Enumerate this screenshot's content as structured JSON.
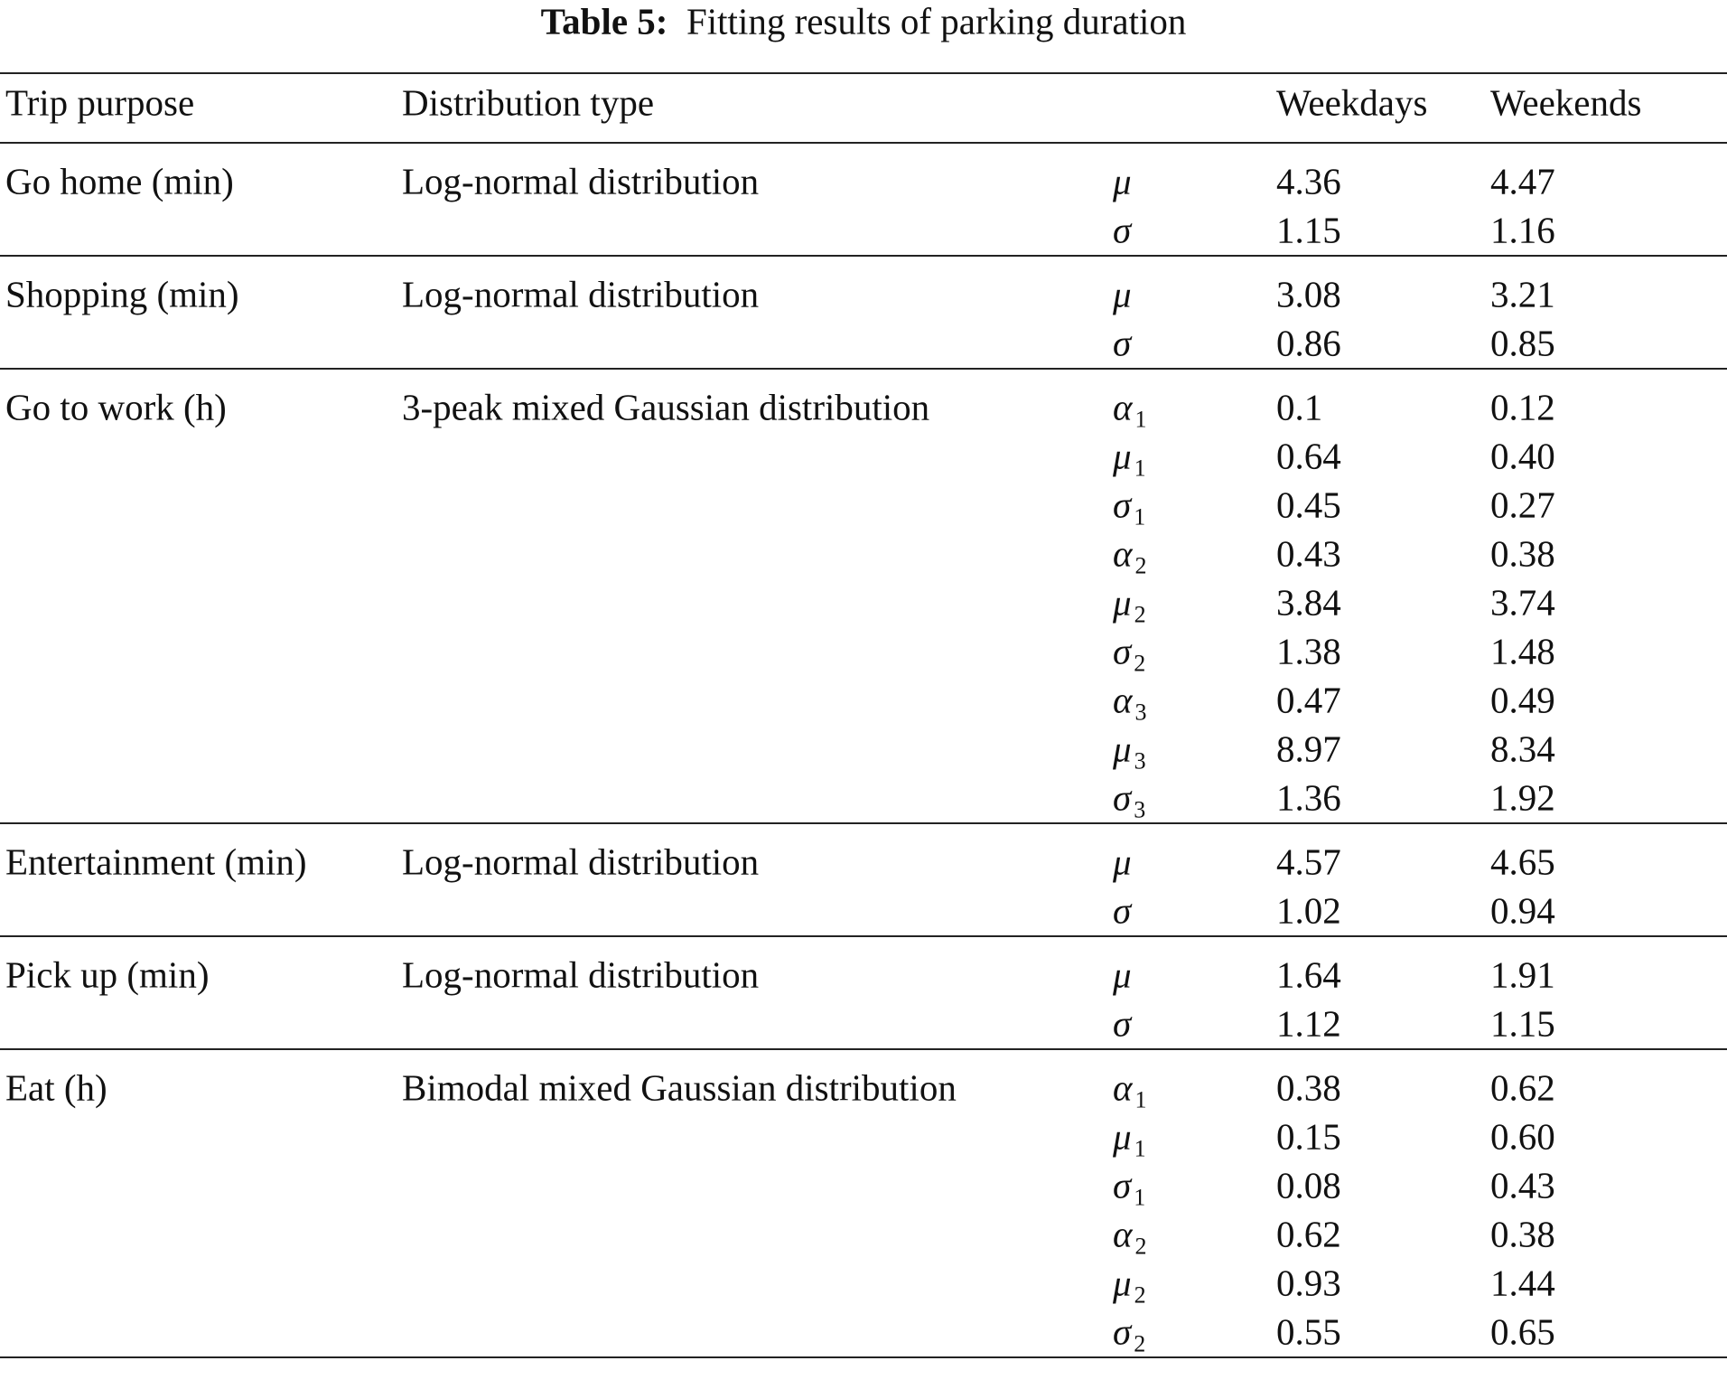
{
  "caption": {
    "label": "Table 5:",
    "text": "Fitting results of parking duration"
  },
  "table": {
    "header": [
      "Trip purpose",
      "Distribution type",
      "Weekdays",
      "Weekends"
    ],
    "groups": [
      {
        "purpose": "Go home (min)",
        "distribution": "Log-normal distribution",
        "params": [
          {
            "symbol": "μ",
            "weekdays": "4.36",
            "weekends": "4.47"
          },
          {
            "symbol": "σ",
            "weekdays": "1.15",
            "weekends": "1.16"
          }
        ]
      },
      {
        "purpose": "Shopping (min)",
        "distribution": "Log-normal distribution",
        "params": [
          {
            "symbol": "μ",
            "weekdays": "3.08",
            "weekends": "3.21"
          },
          {
            "symbol": "σ",
            "weekdays": "0.86",
            "weekends": "0.85"
          }
        ]
      },
      {
        "purpose": "Go to work (h)",
        "distribution": "3-peak mixed Gaussian distribution",
        "params": [
          {
            "symbol": "α",
            "sub": "1",
            "weekdays": "0.1",
            "weekends": "0.12"
          },
          {
            "symbol": "μ",
            "sub": "1",
            "weekdays": "0.64",
            "weekends": "0.40"
          },
          {
            "symbol": "σ",
            "sub": "1",
            "weekdays": "0.45",
            "weekends": "0.27"
          },
          {
            "symbol": "α",
            "sub": "2",
            "weekdays": "0.43",
            "weekends": "0.38"
          },
          {
            "symbol": "μ",
            "sub": "2",
            "weekdays": "3.84",
            "weekends": "3.74"
          },
          {
            "symbol": "σ",
            "sub": "2",
            "weekdays": "1.38",
            "weekends": "1.48"
          },
          {
            "symbol": "α",
            "sub": "3",
            "weekdays": "0.47",
            "weekends": "0.49"
          },
          {
            "symbol": "μ",
            "sub": "3",
            "weekdays": "8.97",
            "weekends": "8.34"
          },
          {
            "symbol": "σ",
            "sub": "3",
            "weekdays": "1.36",
            "weekends": "1.92"
          }
        ]
      },
      {
        "purpose": "Entertainment (min)",
        "distribution": "Log-normal distribution",
        "params": [
          {
            "symbol": "μ",
            "weekdays": "4.57",
            "weekends": "4.65"
          },
          {
            "symbol": "σ",
            "weekdays": "1.02",
            "weekends": "0.94"
          }
        ]
      },
      {
        "purpose": "Pick up (min)",
        "distribution": "Log-normal distribution",
        "params": [
          {
            "symbol": "μ",
            "weekdays": "1.64",
            "weekends": "1.91"
          },
          {
            "symbol": "σ",
            "weekdays": "1.12",
            "weekends": "1.15"
          }
        ]
      },
      {
        "purpose": "Eat (h)",
        "distribution": "Bimodal mixed Gaussian distribution",
        "params": [
          {
            "symbol": "α",
            "sub": "1",
            "weekdays": "0.38",
            "weekends": "0.62"
          },
          {
            "symbol": "μ",
            "sub": "1",
            "weekdays": "0.15",
            "weekends": "0.60"
          },
          {
            "symbol": "σ",
            "sub": "1",
            "weekdays": "0.08",
            "weekends": "0.43"
          },
          {
            "symbol": "α",
            "sub": "2",
            "weekdays": "0.62",
            "weekends": "0.38"
          },
          {
            "symbol": "μ",
            "sub": "2",
            "weekdays": "0.93",
            "weekends": "1.44"
          },
          {
            "symbol": "σ",
            "sub": "2",
            "weekdays": "0.55",
            "weekends": "0.65"
          }
        ]
      }
    ]
  }
}
